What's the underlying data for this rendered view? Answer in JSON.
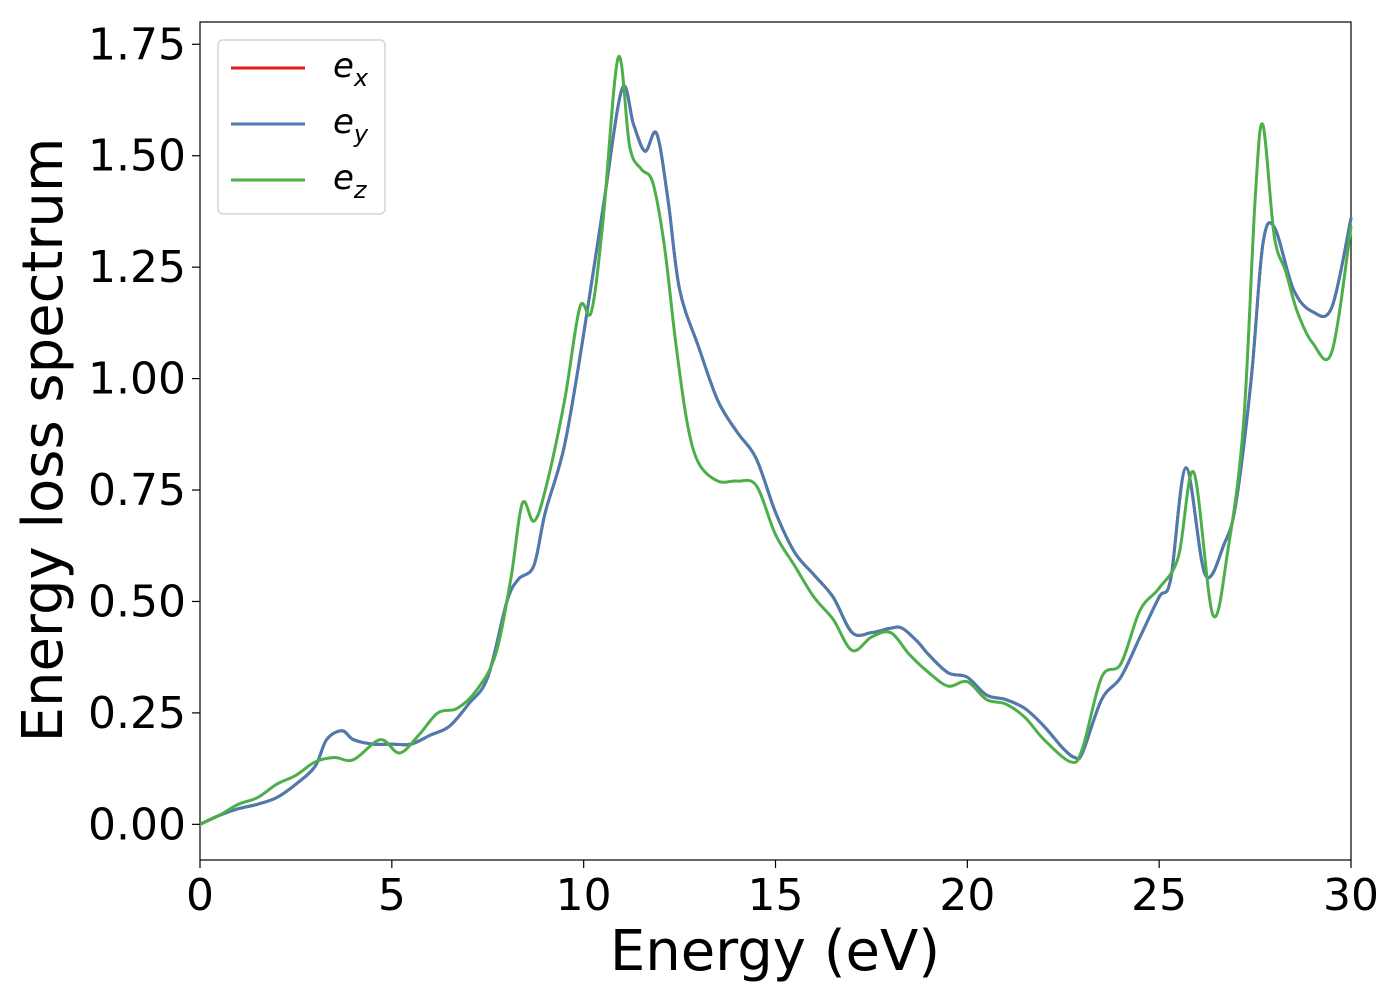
{
  "chart_data": {
    "type": "line",
    "title": "",
    "xlabel": "Energy (eV)",
    "ylabel": "Energy loss spectrum",
    "xlim": [
      0,
      30
    ],
    "ylim": [
      -0.08,
      1.8
    ],
    "xticks": [
      0,
      5,
      10,
      15,
      20,
      25,
      30
    ],
    "xtick_labels": [
      "0",
      "5",
      "10",
      "15",
      "20",
      "25",
      "30"
    ],
    "yticks": [
      0.0,
      0.25,
      0.5,
      0.75,
      1.0,
      1.25,
      1.5,
      1.75
    ],
    "ytick_labels": [
      "0.00",
      "0.25",
      "0.50",
      "0.75",
      "1.00",
      "1.25",
      "1.50",
      "1.75"
    ],
    "grid": false,
    "legend_position": "top-left",
    "series": [
      {
        "name": "e_x",
        "label_base": "e",
        "label_sub": "x",
        "color": "#e41a1c",
        "x": [
          0,
          0.5,
          1,
          1.5,
          2,
          2.5,
          3,
          3.3,
          3.7,
          4,
          4.5,
          5,
          5.5,
          6,
          6.5,
          7,
          7.5,
          8,
          8.3,
          8.7,
          9,
          9.5,
          10,
          10.5,
          11,
          11.3,
          11.6,
          11.9,
          12.2,
          12.5,
          13,
          13.5,
          14,
          14.5,
          15,
          15.5,
          16,
          16.5,
          17,
          17.5,
          18,
          18.3,
          18.7,
          19,
          19.5,
          20,
          20.5,
          21,
          21.5,
          22,
          22.5,
          22.8,
          23,
          23.5,
          24,
          24.5,
          25,
          25.3,
          25.7,
          26.2,
          26.7,
          27,
          27.4,
          27.7,
          28,
          28.5,
          29,
          29.5,
          30
        ],
        "y": [
          0.0,
          0.02,
          0.035,
          0.045,
          0.06,
          0.09,
          0.13,
          0.19,
          0.21,
          0.19,
          0.18,
          0.18,
          0.18,
          0.2,
          0.22,
          0.27,
          0.33,
          0.5,
          0.55,
          0.58,
          0.7,
          0.85,
          1.1,
          1.38,
          1.65,
          1.57,
          1.51,
          1.55,
          1.4,
          1.2,
          1.07,
          0.95,
          0.88,
          0.82,
          0.7,
          0.61,
          0.56,
          0.51,
          0.43,
          0.43,
          0.44,
          0.44,
          0.41,
          0.38,
          0.34,
          0.33,
          0.29,
          0.28,
          0.26,
          0.22,
          0.17,
          0.15,
          0.16,
          0.28,
          0.33,
          0.42,
          0.51,
          0.55,
          0.8,
          0.56,
          0.63,
          0.72,
          1.0,
          1.3,
          1.34,
          1.2,
          1.15,
          1.16,
          1.36
        ]
      },
      {
        "name": "e_y",
        "label_base": "e",
        "label_sub": "y",
        "color": "#4a7cb0",
        "x": [
          0,
          0.5,
          1,
          1.5,
          2,
          2.5,
          3,
          3.3,
          3.7,
          4,
          4.5,
          5,
          5.5,
          6,
          6.5,
          7,
          7.5,
          8,
          8.3,
          8.7,
          9,
          9.5,
          10,
          10.5,
          11,
          11.3,
          11.6,
          11.9,
          12.2,
          12.5,
          13,
          13.5,
          14,
          14.5,
          15,
          15.5,
          16,
          16.5,
          17,
          17.5,
          18,
          18.3,
          18.7,
          19,
          19.5,
          20,
          20.5,
          21,
          21.5,
          22,
          22.5,
          22.8,
          23,
          23.5,
          24,
          24.5,
          25,
          25.3,
          25.7,
          26.2,
          26.7,
          27,
          27.4,
          27.7,
          28,
          28.5,
          29,
          29.5,
          30
        ],
        "y": [
          0.0,
          0.02,
          0.035,
          0.045,
          0.06,
          0.09,
          0.13,
          0.19,
          0.21,
          0.19,
          0.18,
          0.18,
          0.18,
          0.2,
          0.22,
          0.27,
          0.33,
          0.5,
          0.55,
          0.58,
          0.7,
          0.85,
          1.1,
          1.38,
          1.65,
          1.57,
          1.51,
          1.55,
          1.4,
          1.2,
          1.07,
          0.95,
          0.88,
          0.82,
          0.7,
          0.61,
          0.56,
          0.51,
          0.43,
          0.43,
          0.44,
          0.44,
          0.41,
          0.38,
          0.34,
          0.33,
          0.29,
          0.28,
          0.26,
          0.22,
          0.17,
          0.15,
          0.16,
          0.28,
          0.33,
          0.42,
          0.51,
          0.55,
          0.8,
          0.56,
          0.63,
          0.72,
          1.0,
          1.3,
          1.34,
          1.2,
          1.15,
          1.16,
          1.36
        ]
      },
      {
        "name": "e_z",
        "label_base": "e",
        "label_sub": "z",
        "color": "#4daf4a",
        "x": [
          0,
          0.5,
          1,
          1.5,
          2,
          2.5,
          3,
          3.5,
          4,
          4.7,
          5.2,
          5.7,
          6.2,
          6.7,
          7.2,
          7.7,
          8.1,
          8.4,
          8.7,
          9,
          9.5,
          9.9,
          10.2,
          10.5,
          10.9,
          11.2,
          11.5,
          11.8,
          12.1,
          12.4,
          12.7,
          13,
          13.5,
          14,
          14.5,
          15,
          15.5,
          16,
          16.5,
          17,
          17.5,
          18,
          18.5,
          19,
          19.5,
          20,
          20.5,
          21,
          21.5,
          22,
          22.7,
          23,
          23.5,
          24,
          24.5,
          25,
          25.5,
          25.9,
          26.4,
          26.8,
          27.2,
          27.5,
          27.7,
          28,
          28.3,
          28.6,
          29,
          29.5,
          30
        ],
        "y": [
          0.0,
          0.02,
          0.045,
          0.06,
          0.09,
          0.11,
          0.14,
          0.15,
          0.145,
          0.19,
          0.16,
          0.2,
          0.25,
          0.26,
          0.3,
          0.38,
          0.55,
          0.72,
          0.68,
          0.75,
          0.95,
          1.16,
          1.15,
          1.35,
          1.72,
          1.52,
          1.47,
          1.44,
          1.3,
          1.08,
          0.9,
          0.81,
          0.77,
          0.77,
          0.76,
          0.65,
          0.58,
          0.51,
          0.46,
          0.39,
          0.42,
          0.43,
          0.38,
          0.34,
          0.31,
          0.32,
          0.28,
          0.27,
          0.24,
          0.19,
          0.14,
          0.17,
          0.33,
          0.36,
          0.48,
          0.53,
          0.6,
          0.79,
          0.47,
          0.62,
          0.9,
          1.4,
          1.57,
          1.32,
          1.24,
          1.15,
          1.08,
          1.06,
          1.34
        ]
      }
    ]
  }
}
